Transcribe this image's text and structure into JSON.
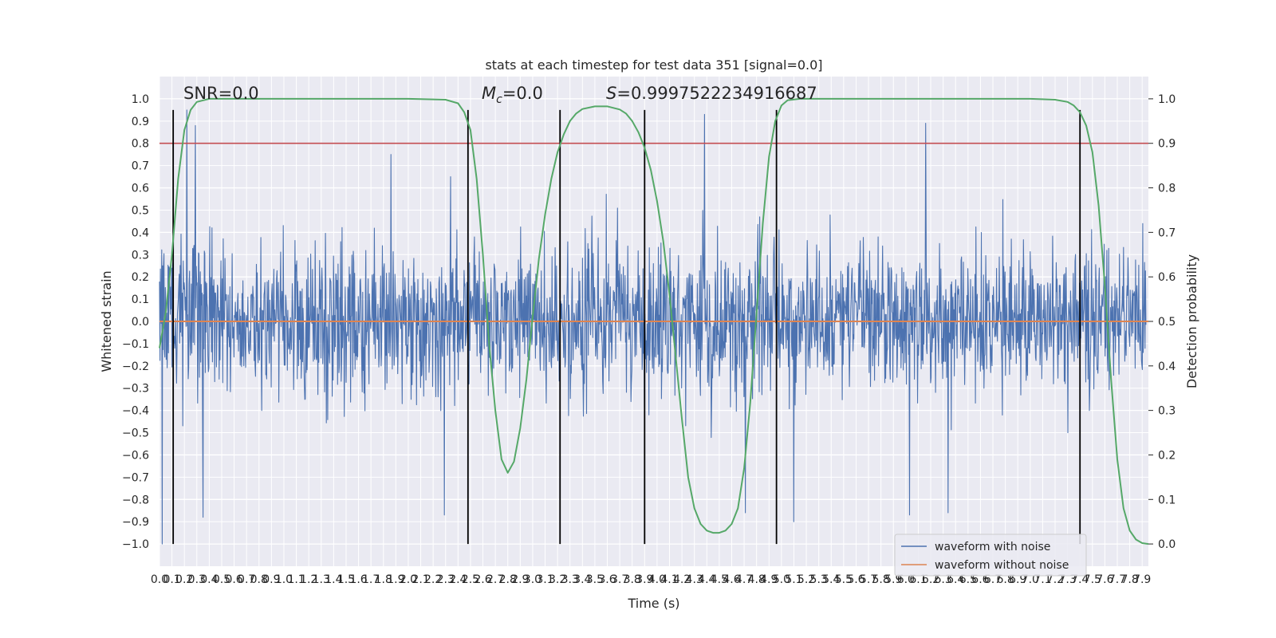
{
  "colors": {
    "plot_bg": "#eaeaf2",
    "grid": "#ffffff",
    "noisy": "#4c72b0",
    "clean": "#dd8452",
    "prob": "#55a868",
    "threshold": "#c44e52",
    "boundary": "#000000"
  },
  "chart_data": {
    "type": "line",
    "title": "stats at each timestep for test data 351 [signal=0.0]",
    "xlabel": "Time (s)",
    "ylabel": "Whitened strain",
    "y2label": "Detection probability",
    "xlim": [
      0.0,
      7.95
    ],
    "ylim": [
      -1.1,
      1.1
    ],
    "y2lim": [
      -0.05,
      1.05
    ],
    "x_ticks": [
      0.0,
      0.1,
      0.2,
      0.3,
      0.4,
      0.5,
      0.6,
      0.7,
      0.8,
      0.9,
      1.0,
      1.1,
      1.2,
      1.3,
      1.4,
      1.5,
      1.6,
      1.7,
      1.8,
      1.9,
      2.0,
      2.1,
      2.2,
      2.3,
      2.4,
      2.5,
      2.6,
      2.7,
      2.8,
      2.9,
      3.0,
      3.1,
      3.2,
      3.3,
      3.4,
      3.5,
      3.6,
      3.7,
      3.8,
      3.9,
      4.0,
      4.1,
      4.2,
      4.3,
      4.4,
      4.5,
      4.6,
      4.7,
      4.8,
      4.9,
      5.0,
      5.1,
      5.2,
      5.3,
      5.4,
      5.5,
      5.6,
      5.7,
      5.8,
      5.9,
      6.0,
      6.1,
      6.2,
      6.3,
      6.4,
      6.5,
      6.6,
      6.7,
      6.8,
      6.9,
      7.0,
      7.1,
      7.2,
      7.3,
      7.4,
      7.5,
      7.6,
      7.7,
      7.8,
      7.9
    ],
    "y_ticks": [
      -1.0,
      -0.9,
      -0.8,
      -0.7,
      -0.6,
      -0.5,
      -0.4,
      -0.3,
      -0.2,
      -0.1,
      0.0,
      0.1,
      0.2,
      0.3,
      0.4,
      0.5,
      0.6,
      0.7,
      0.8,
      0.9,
      1.0
    ],
    "y2_ticks": [
      0.0,
      0.1,
      0.2,
      0.3,
      0.4,
      0.5,
      0.6,
      0.7,
      0.8,
      0.9,
      1.0
    ],
    "annotations": {
      "snr": "SNR=0.0",
      "mc": "=0.0",
      "mc_symbol": "M",
      "mc_sub": "c",
      "s_value": "=0.9997522234916687",
      "s_symbol": "S"
    },
    "threshold_probability": 0.9,
    "boundaries": [
      0.11,
      2.48,
      3.22,
      3.9,
      4.96,
      7.4
    ],
    "noise_envelope": {
      "typical_high": 0.45,
      "typical_low": -0.4,
      "extreme_high": [
        [
          0.22,
          0.95
        ],
        [
          4.38,
          0.93
        ],
        [
          6.16,
          0.89
        ],
        [
          1.86,
          0.75
        ],
        [
          0.29,
          0.88
        ]
      ],
      "extreme_low": [
        [
          0.02,
          -1.0
        ],
        [
          0.35,
          -0.88
        ],
        [
          2.29,
          -0.87
        ],
        [
          6.03,
          -0.87
        ],
        [
          6.34,
          -0.86
        ],
        [
          4.71,
          -0.86
        ],
        [
          5.1,
          -0.9
        ]
      ]
    },
    "series": [
      {
        "name": "waveform with noise",
        "color": "#4c72b0"
      },
      {
        "name": "waveform without noise",
        "color": "#dd8452",
        "values": [
          [
            0.0,
            0.0
          ],
          [
            7.95,
            0.0
          ]
        ]
      },
      {
        "name": "",
        "axis": "right",
        "color": "#55a868",
        "points": [
          [
            0.0,
            0.44
          ],
          [
            0.05,
            0.52
          ],
          [
            0.1,
            0.65
          ],
          [
            0.15,
            0.82
          ],
          [
            0.2,
            0.93
          ],
          [
            0.25,
            0.975
          ],
          [
            0.3,
            0.993
          ],
          [
            0.4,
            1.0
          ],
          [
            1.0,
            1.0
          ],
          [
            2.0,
            1.0
          ],
          [
            2.3,
            0.998
          ],
          [
            2.4,
            0.99
          ],
          [
            2.45,
            0.97
          ],
          [
            2.5,
            0.93
          ],
          [
            2.55,
            0.82
          ],
          [
            2.6,
            0.65
          ],
          [
            2.65,
            0.45
          ],
          [
            2.7,
            0.3
          ],
          [
            2.75,
            0.19
          ],
          [
            2.8,
            0.16
          ],
          [
            2.85,
            0.185
          ],
          [
            2.9,
            0.26
          ],
          [
            2.95,
            0.37
          ],
          [
            3.0,
            0.51
          ],
          [
            3.05,
            0.64
          ],
          [
            3.1,
            0.74
          ],
          [
            3.15,
            0.82
          ],
          [
            3.2,
            0.88
          ],
          [
            3.25,
            0.92
          ],
          [
            3.3,
            0.95
          ],
          [
            3.35,
            0.967
          ],
          [
            3.4,
            0.977
          ],
          [
            3.5,
            0.983
          ],
          [
            3.6,
            0.983
          ],
          [
            3.7,
            0.976
          ],
          [
            3.75,
            0.967
          ],
          [
            3.8,
            0.95
          ],
          [
            3.85,
            0.925
          ],
          [
            3.9,
            0.89
          ],
          [
            3.95,
            0.84
          ],
          [
            4.0,
            0.77
          ],
          [
            4.05,
            0.68
          ],
          [
            4.1,
            0.56
          ],
          [
            4.15,
            0.42
          ],
          [
            4.2,
            0.28
          ],
          [
            4.25,
            0.15
          ],
          [
            4.3,
            0.08
          ],
          [
            4.35,
            0.045
          ],
          [
            4.4,
            0.03
          ],
          [
            4.45,
            0.025
          ],
          [
            4.5,
            0.025
          ],
          [
            4.55,
            0.03
          ],
          [
            4.6,
            0.045
          ],
          [
            4.65,
            0.08
          ],
          [
            4.7,
            0.17
          ],
          [
            4.75,
            0.32
          ],
          [
            4.8,
            0.52
          ],
          [
            4.85,
            0.72
          ],
          [
            4.9,
            0.87
          ],
          [
            4.95,
            0.95
          ],
          [
            5.0,
            0.985
          ],
          [
            5.05,
            0.997
          ],
          [
            5.15,
            1.0
          ],
          [
            6.0,
            1.0
          ],
          [
            7.0,
            1.0
          ],
          [
            7.2,
            0.998
          ],
          [
            7.3,
            0.993
          ],
          [
            7.35,
            0.985
          ],
          [
            7.4,
            0.97
          ],
          [
            7.45,
            0.94
          ],
          [
            7.5,
            0.88
          ],
          [
            7.55,
            0.76
          ],
          [
            7.6,
            0.58
          ],
          [
            7.65,
            0.37
          ],
          [
            7.7,
            0.19
          ],
          [
            7.75,
            0.08
          ],
          [
            7.8,
            0.03
          ],
          [
            7.85,
            0.01
          ],
          [
            7.9,
            0.002
          ],
          [
            7.95,
            0.0
          ]
        ]
      }
    ],
    "legend_position": "lower right",
    "grid": true
  }
}
